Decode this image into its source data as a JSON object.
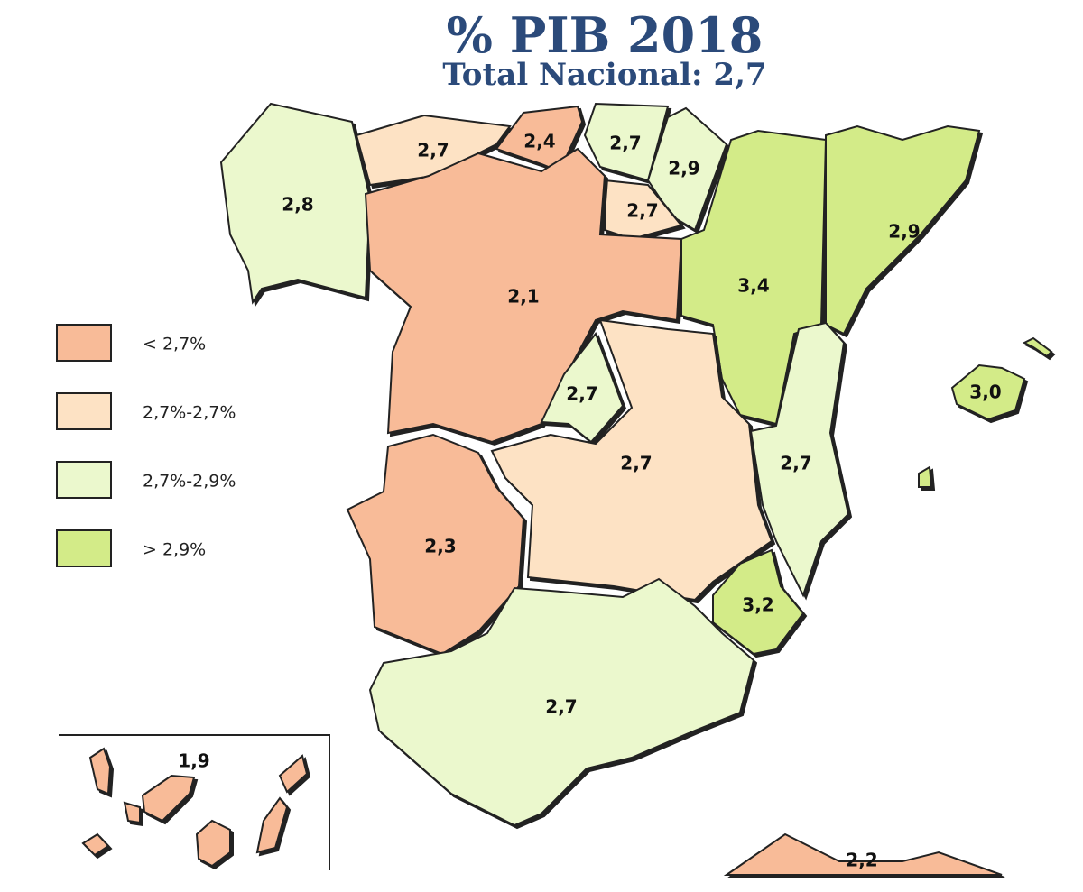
{
  "header": {
    "title": "% PIB 2018",
    "subtitle": "Total Nacional: 2,7"
  },
  "legend": [
    {
      "label": "< 2,7%",
      "color": "#f8bb98"
    },
    {
      "label": "2,7%-2,7%",
      "color": "#fde2c4"
    },
    {
      "label": "2,7%-2,9%",
      "color": "#ebf8cd"
    },
    {
      "label": "> 2,9%",
      "color": "#d3eb88"
    }
  ],
  "regions": [
    {
      "label": "2,8",
      "color": "#ebf8cd"
    },
    {
      "label": "2,7",
      "color": "#fde2c4"
    },
    {
      "label": "2,4",
      "color": "#f8bb98"
    },
    {
      "label": "2,7",
      "color": "#ebf8cd"
    },
    {
      "label": "2,9",
      "color": "#ebf8cd"
    },
    {
      "label": "2,7",
      "color": "#fde2c4"
    },
    {
      "label": "2,1",
      "color": "#f8bb98"
    },
    {
      "label": "3,4",
      "color": "#d3eb88"
    },
    {
      "label": "2,9",
      "color": "#d3eb88"
    },
    {
      "label": "2,7",
      "color": "#ebf8cd"
    },
    {
      "label": "2,7",
      "color": "#fde2c4"
    },
    {
      "label": "2,7",
      "color": "#ebf8cd"
    },
    {
      "label": "3,2",
      "color": "#d3eb88"
    },
    {
      "label": "2,3",
      "color": "#f8bb98"
    },
    {
      "label": "2,7",
      "color": "#ebf8cd"
    },
    {
      "label": "3,0",
      "color": "#d3eb88"
    },
    {
      "label": "1,9",
      "color": "#f8bb98"
    },
    {
      "label": "2,2",
      "color": "#f8bb98"
    }
  ]
}
